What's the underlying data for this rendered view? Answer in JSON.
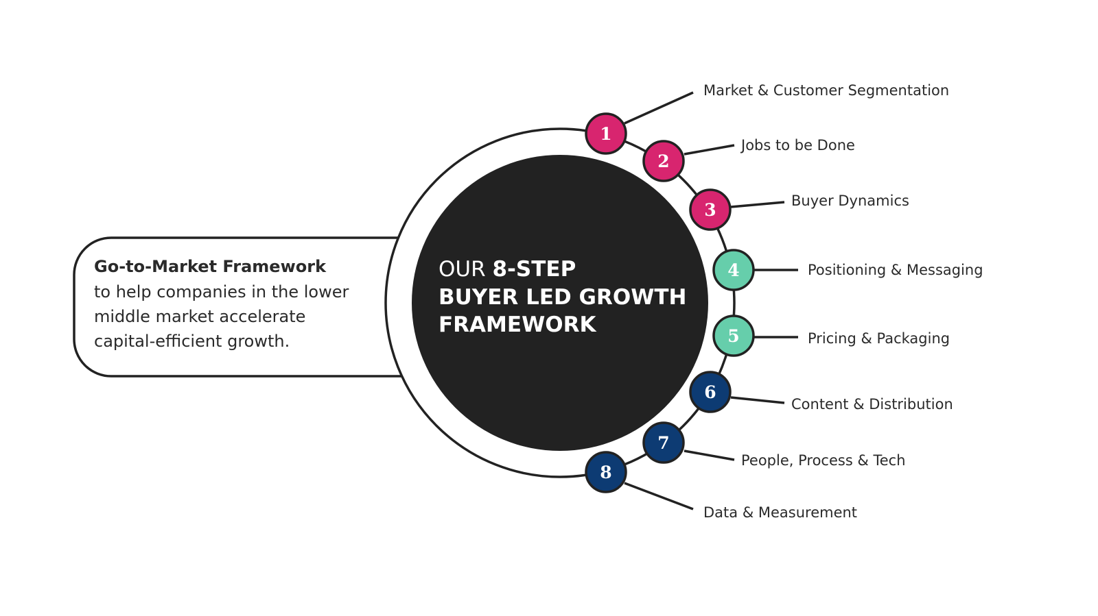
{
  "colors": {
    "pink": "#d8256f",
    "teal": "#66ceab",
    "navy": "#0d3b73",
    "dark": "#222222",
    "stroke": "#222222"
  },
  "side_box": {
    "heading": "Go-to-Market Framework",
    "lines": [
      "to help companies in the lower",
      "middle market accelerate",
      "capital-efficient growth."
    ]
  },
  "center": {
    "line1_light": "OUR ",
    "line1_bold": "8-STEP",
    "line2": "BUYER LED GROWTH",
    "line3": "FRAMEWORK"
  },
  "steps": [
    {
      "number": "1",
      "label": "Market & Customer Segmentation",
      "color": "pink"
    },
    {
      "number": "2",
      "label": "Jobs to be Done",
      "color": "pink"
    },
    {
      "number": "3",
      "label": "Buyer Dynamics",
      "color": "pink"
    },
    {
      "number": "4",
      "label": "Positioning & Messaging",
      "color": "teal"
    },
    {
      "number": "5",
      "label": "Pricing & Packaging",
      "color": "teal"
    },
    {
      "number": "6",
      "label": "Content & Distribution",
      "color": "navy"
    },
    {
      "number": "7",
      "label": "People, Process & Tech",
      "color": "navy"
    },
    {
      "number": "8",
      "label": "Data & Measurement",
      "color": "navy"
    }
  ]
}
